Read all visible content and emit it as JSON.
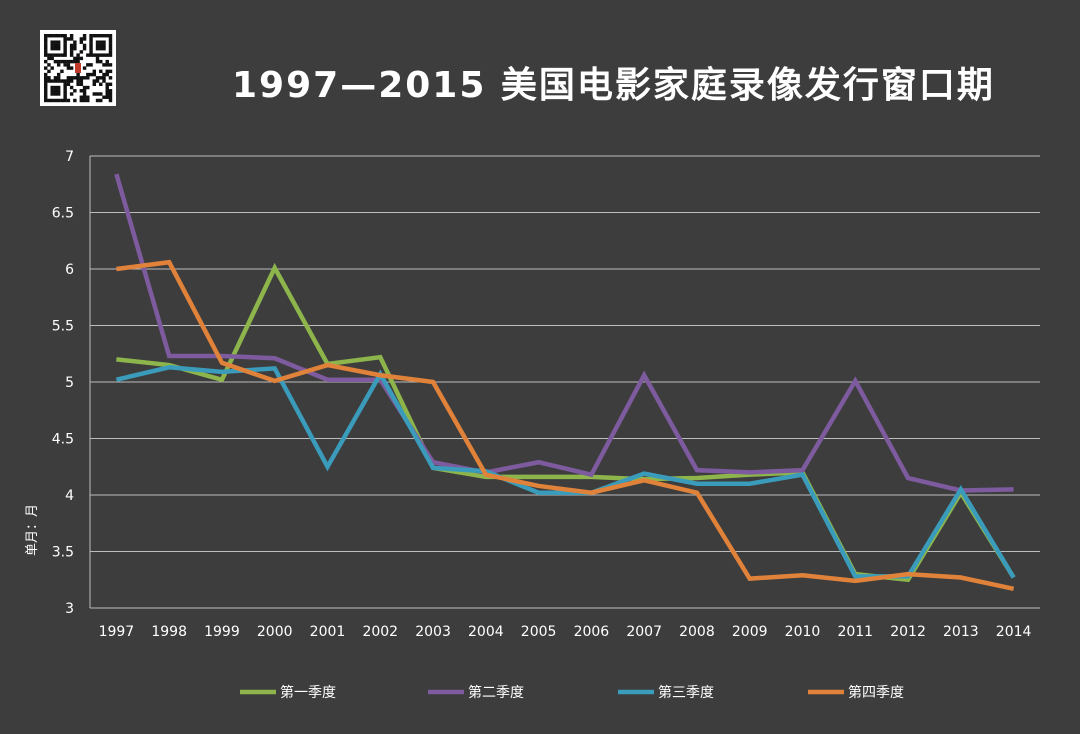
{
  "title": "1997—2015 美国电影家庭录像发行窗口期",
  "chart_data": {
    "type": "line",
    "title": "1997—2015 美国电影家庭录像发行窗口期",
    "xlabel": "",
    "ylabel": "单月：月",
    "ylim": [
      3,
      7
    ],
    "yticks": [
      3,
      3.5,
      4,
      4.5,
      5,
      5.5,
      6,
      6.5,
      7
    ],
    "ytick_labels": [
      "3",
      "3.5",
      "4",
      "4.5",
      "5",
      "5.5",
      "6",
      "6.5",
      "7"
    ],
    "grid": true,
    "legend_position": "bottom",
    "x": [
      "1997",
      "1998",
      "1999",
      "2000",
      "2001",
      "2002",
      "2003",
      "2004",
      "2005",
      "2006",
      "2007",
      "2008",
      "2009",
      "2010",
      "2011",
      "2012",
      "2013",
      "2014"
    ],
    "series": [
      {
        "name": "第一季度",
        "color": "#8db54b",
        "values": [
          5.2,
          5.15,
          5.02,
          6.01,
          5.16,
          5.22,
          4.24,
          4.16,
          4.16,
          4.16,
          4.14,
          4.15,
          4.18,
          4.2,
          3.3,
          3.25,
          4.02,
          3.27
        ]
      },
      {
        "name": "第二季度",
        "color": "#7d5b9e",
        "values": [
          6.84,
          5.23,
          5.23,
          5.21,
          5.02,
          5.02,
          4.29,
          4.2,
          4.29,
          4.18,
          5.06,
          4.22,
          4.2,
          4.22,
          5.01,
          4.15,
          4.04,
          4.05
        ]
      },
      {
        "name": "第三季度",
        "color": "#3a9bba",
        "values": [
          5.02,
          5.13,
          5.09,
          5.12,
          4.25,
          5.07,
          4.24,
          4.21,
          4.02,
          4.02,
          4.19,
          4.1,
          4.1,
          4.18,
          3.28,
          3.28,
          4.05,
          3.27
        ]
      },
      {
        "name": "第四季度",
        "color": "#e0823a",
        "values": [
          6.0,
          6.06,
          5.17,
          5.01,
          5.15,
          5.06,
          5.0,
          4.18,
          4.08,
          4.02,
          4.13,
          4.02,
          3.26,
          3.29,
          3.24,
          3.3,
          3.27,
          3.17
        ]
      }
    ]
  }
}
